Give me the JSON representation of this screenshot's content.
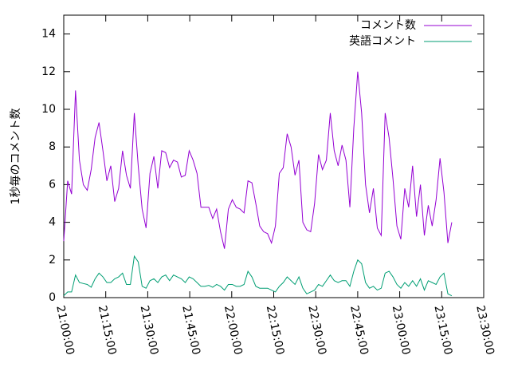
{
  "chart_data": {
    "type": "line",
    "ylabel": "1秒毎のコメント数",
    "x": [
      "21:00:00",
      "21:01:24",
      "21:02:48",
      "21:04:12",
      "21:05:36",
      "21:07:00",
      "21:08:24",
      "21:09:48",
      "21:11:12",
      "21:12:36",
      "21:14:00",
      "21:15:24",
      "21:16:48",
      "21:18:12",
      "21:19:36",
      "21:21:00",
      "21:22:24",
      "21:23:48",
      "21:25:12",
      "21:26:36",
      "21:28:00",
      "21:29:24",
      "21:30:48",
      "21:32:12",
      "21:33:36",
      "21:35:00",
      "21:36:24",
      "21:37:48",
      "21:39:12",
      "21:40:36",
      "21:42:00",
      "21:43:24",
      "21:44:48",
      "21:46:12",
      "21:47:36",
      "21:49:00",
      "21:50:24",
      "21:51:48",
      "21:53:12",
      "21:54:36",
      "21:56:00",
      "21:57:24",
      "21:58:48",
      "22:00:12",
      "22:01:36",
      "22:03:00",
      "22:04:24",
      "22:05:48",
      "22:07:12",
      "22:08:36",
      "22:10:00",
      "22:11:24",
      "22:12:48",
      "22:14:12",
      "22:15:36",
      "22:17:00",
      "22:18:24",
      "22:19:48",
      "22:21:12",
      "22:22:36",
      "22:24:00",
      "22:25:24",
      "22:26:48",
      "22:28:12",
      "22:29:36",
      "22:31:00",
      "22:32:24",
      "22:33:48",
      "22:35:12",
      "22:36:36",
      "22:38:00",
      "22:39:24",
      "22:40:48",
      "22:42:12",
      "22:43:36",
      "22:45:00",
      "22:46:24",
      "22:47:48",
      "22:49:12",
      "22:50:36",
      "22:52:00",
      "22:53:24",
      "22:54:48",
      "22:56:12",
      "22:57:36",
      "22:59:00",
      "23:00:24",
      "23:01:48",
      "23:03:12",
      "23:04:36",
      "23:06:00",
      "23:07:24",
      "23:08:48",
      "23:10:12",
      "23:11:36",
      "23:13:00",
      "23:14:24",
      "23:15:48",
      "23:17:12",
      "23:18:36"
    ],
    "series": [
      {
        "name": "コメント数",
        "color": "#9400d3",
        "values": [
          3,
          6.2,
          5.5,
          11,
          7.3,
          6,
          5.7,
          6.8,
          8.5,
          9.3,
          7.8,
          6.2,
          7,
          5.1,
          5.8,
          7.8,
          6.5,
          5.8,
          9.8,
          7,
          4.7,
          3.7,
          6.6,
          7.5,
          5.8,
          7.8,
          7.7,
          6.9,
          7.3,
          7.2,
          6.4,
          6.5,
          7.8,
          7.3,
          6.6,
          4.8,
          4.8,
          4.8,
          4.2,
          4.7,
          3.5,
          2.6,
          4.7,
          5.2,
          4.8,
          4.7,
          4.5,
          6.2,
          6.1,
          5,
          3.8,
          3.5,
          3.4,
          2.9,
          3.8,
          6.6,
          6.9,
          8.7,
          8,
          6.5,
          7.3,
          4,
          3.6,
          3.5,
          5,
          7.6,
          6.8,
          7.3,
          9.8,
          7.8,
          7,
          8.1,
          7.3,
          4.8,
          9,
          12,
          9.8,
          6,
          4.5,
          5.8,
          3.7,
          3.3,
          9.8,
          8.5,
          6.3,
          3.8,
          3.1,
          5.8,
          4.8,
          7,
          4.3,
          6,
          3.3,
          4.9,
          3.8,
          5.2,
          7.4,
          5.6,
          2.9,
          4
        ]
      },
      {
        "name": "英語コメント",
        "color": "#009e73",
        "values": [
          0.1,
          0.3,
          0.3,
          1.2,
          0.8,
          0.75,
          0.7,
          0.55,
          1,
          1.3,
          1.1,
          0.8,
          0.8,
          1,
          1.1,
          1.3,
          0.7,
          0.7,
          2.2,
          1.9,
          0.6,
          0.5,
          0.9,
          1,
          0.8,
          1.1,
          1.2,
          0.9,
          1.2,
          1.1,
          1,
          0.8,
          1.1,
          1,
          0.8,
          0.6,
          0.6,
          0.65,
          0.55,
          0.7,
          0.6,
          0.4,
          0.7,
          0.7,
          0.6,
          0.6,
          0.7,
          1.4,
          1.1,
          0.6,
          0.5,
          0.5,
          0.5,
          0.4,
          0.3,
          0.6,
          0.8,
          1.1,
          0.9,
          0.7,
          1.1,
          0.5,
          0.2,
          0.3,
          0.4,
          0.7,
          0.6,
          0.9,
          1.2,
          0.9,
          0.8,
          0.9,
          0.9,
          0.6,
          1.4,
          2,
          1.8,
          0.8,
          0.5,
          0.6,
          0.4,
          0.5,
          1.3,
          1.4,
          1.1,
          0.7,
          0.5,
          0.8,
          0.6,
          0.9,
          0.6,
          1,
          0.4,
          0.9,
          0.8,
          0.7,
          1.1,
          1.3,
          0.2,
          0.1
        ]
      }
    ],
    "xlim": [
      "21:00:00",
      "23:30:00"
    ],
    "xticks": [
      "21:00:00",
      "21:15:00",
      "21:30:00",
      "21:45:00",
      "22:00:00",
      "22:15:00",
      "22:30:00",
      "22:45:00",
      "23:00:00",
      "23:15:00",
      "23:30:00"
    ],
    "ylim": [
      0,
      15
    ],
    "yticks": [
      0,
      2,
      4,
      6,
      8,
      10,
      12,
      14
    ],
    "legend": "top-right"
  }
}
